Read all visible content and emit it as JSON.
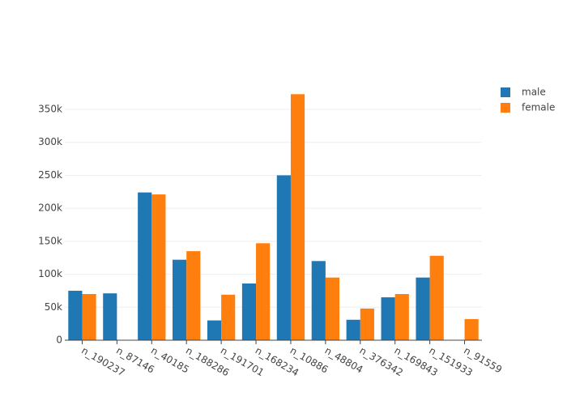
{
  "chart_data": {
    "type": "bar",
    "categories": [
      "n_190237",
      "n_87146",
      "n_40185",
      "n_188286",
      "n_191701",
      "n_168234",
      "n_10886",
      "n_48804",
      "n_376342",
      "n_169843",
      "n_151933",
      "n_91559"
    ],
    "series": [
      {
        "name": "male",
        "color": "#1f77b4",
        "values": [
          75000,
          71000,
          224000,
          122000,
          30000,
          86000,
          250000,
          120000,
          31000,
          65000,
          95000,
          null
        ]
      },
      {
        "name": "female",
        "color": "#ff7f0e",
        "values": [
          70000,
          null,
          221000,
          135000,
          69000,
          147000,
          373000,
          95000,
          48000,
          70000,
          128000,
          32000
        ]
      }
    ],
    "ylim": [
      0,
      393000
    ],
    "yticks": [
      0,
      {
        "value": 50000,
        "label": "50k"
      },
      {
        "value": 100000,
        "label": "100k"
      },
      {
        "value": 150000,
        "label": "150k"
      },
      {
        "value": 200000,
        "label": "200k"
      },
      {
        "value": 250000,
        "label": "250k"
      },
      {
        "value": 300000,
        "label": "300k"
      },
      {
        "value": 350000,
        "label": "350k"
      }
    ],
    "grid": true,
    "legend": "top-right"
  }
}
